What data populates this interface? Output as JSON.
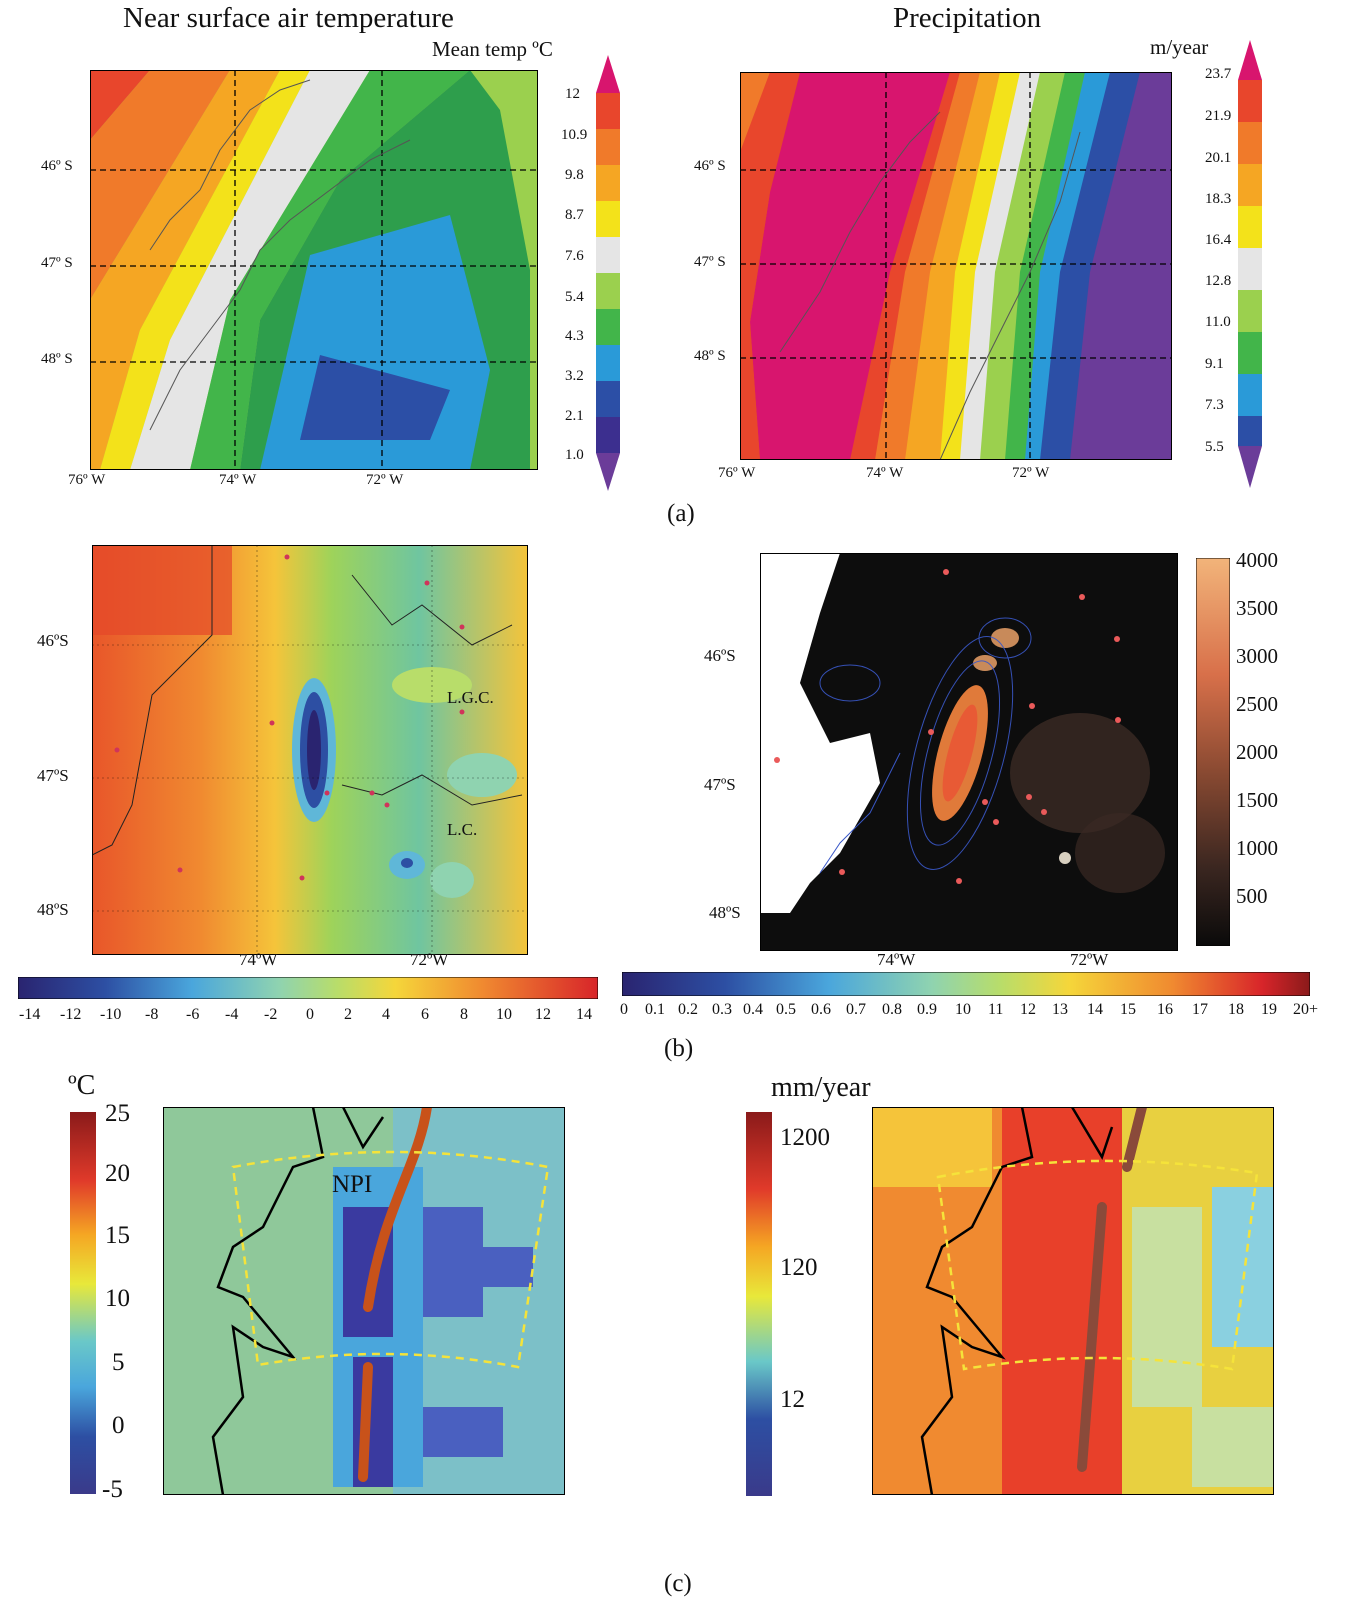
{
  "panel_a": {
    "left": {
      "title": "Near surface air temperature",
      "unit": "Mean temp ºC",
      "lat_labels": [
        "46º S",
        "47º S",
        "48º S"
      ],
      "lon_labels": [
        "76º W",
        "74º W",
        "72º W"
      ],
      "colorbar_ticks": [
        "12",
        "10.9",
        "9.8",
        "8.7",
        "7.6",
        "5.4",
        "4.3",
        "3.2",
        "2.1",
        "1.0"
      ],
      "colors": [
        "#d8156e",
        "#e8462c",
        "#f07a2a",
        "#f5a623",
        "#f3e21a",
        "#e5e5e5",
        "#9bd04e",
        "#42b54a",
        "#2e9e4c",
        "#2a9ad8",
        "#2c4fa6",
        "#3c2f8f",
        "#6b3c99"
      ]
    },
    "right": {
      "title": "Precipitation",
      "unit": "m/year",
      "lat_labels": [
        "46º S",
        "47º S",
        "48º S"
      ],
      "lon_labels": [
        "76º W",
        "74º W",
        "72º W"
      ],
      "colorbar_ticks": [
        "23.7",
        "21.9",
        "20.1",
        "18.3",
        "16.4",
        "12.8",
        "11.0",
        "9.1",
        "7.3",
        "5.5"
      ]
    },
    "caption": "(a)"
  },
  "panel_b": {
    "left": {
      "lat_labels": [
        "46ºS",
        "47ºS",
        "48ºS"
      ],
      "lon_labels": [
        "74ºW",
        "72ºW"
      ],
      "annotations": [
        "L.G.C.",
        "L.C."
      ],
      "colorbar_ticks": [
        "-14",
        "-12",
        "-10",
        "-8",
        "-6",
        "-4",
        "-2",
        "0",
        "2",
        "4",
        "6",
        "8",
        "10",
        "12",
        "14"
      ]
    },
    "right": {
      "lat_labels": [
        "46ºS",
        "47ºS",
        "48ºS"
      ],
      "lon_labels": [
        "74ºW",
        "72ºW"
      ],
      "colorbar_ticks": [
        "4000",
        "3500",
        "3000",
        "2500",
        "2000",
        "1500",
        "1000",
        "500"
      ],
      "bottom_colorbar_ticks": [
        "0",
        "0.1",
        "0.2",
        "0.3",
        "0.4",
        "0.5",
        "0.6",
        "0.7",
        "0.8",
        "0.9",
        "10",
        "11",
        "12",
        "13",
        "14",
        "15",
        "16",
        "17",
        "18",
        "19",
        "20+"
      ]
    },
    "caption": "(b)"
  },
  "panel_c": {
    "left": {
      "unit": "ºC",
      "colorbar_ticks": [
        "25",
        "20",
        "15",
        "10",
        "5",
        "0",
        "-5"
      ],
      "annotation": "NPI"
    },
    "right": {
      "unit": "mm/year",
      "colorbar_ticks": [
        "1200",
        "120",
        "12"
      ]
    },
    "caption": "(c)"
  }
}
